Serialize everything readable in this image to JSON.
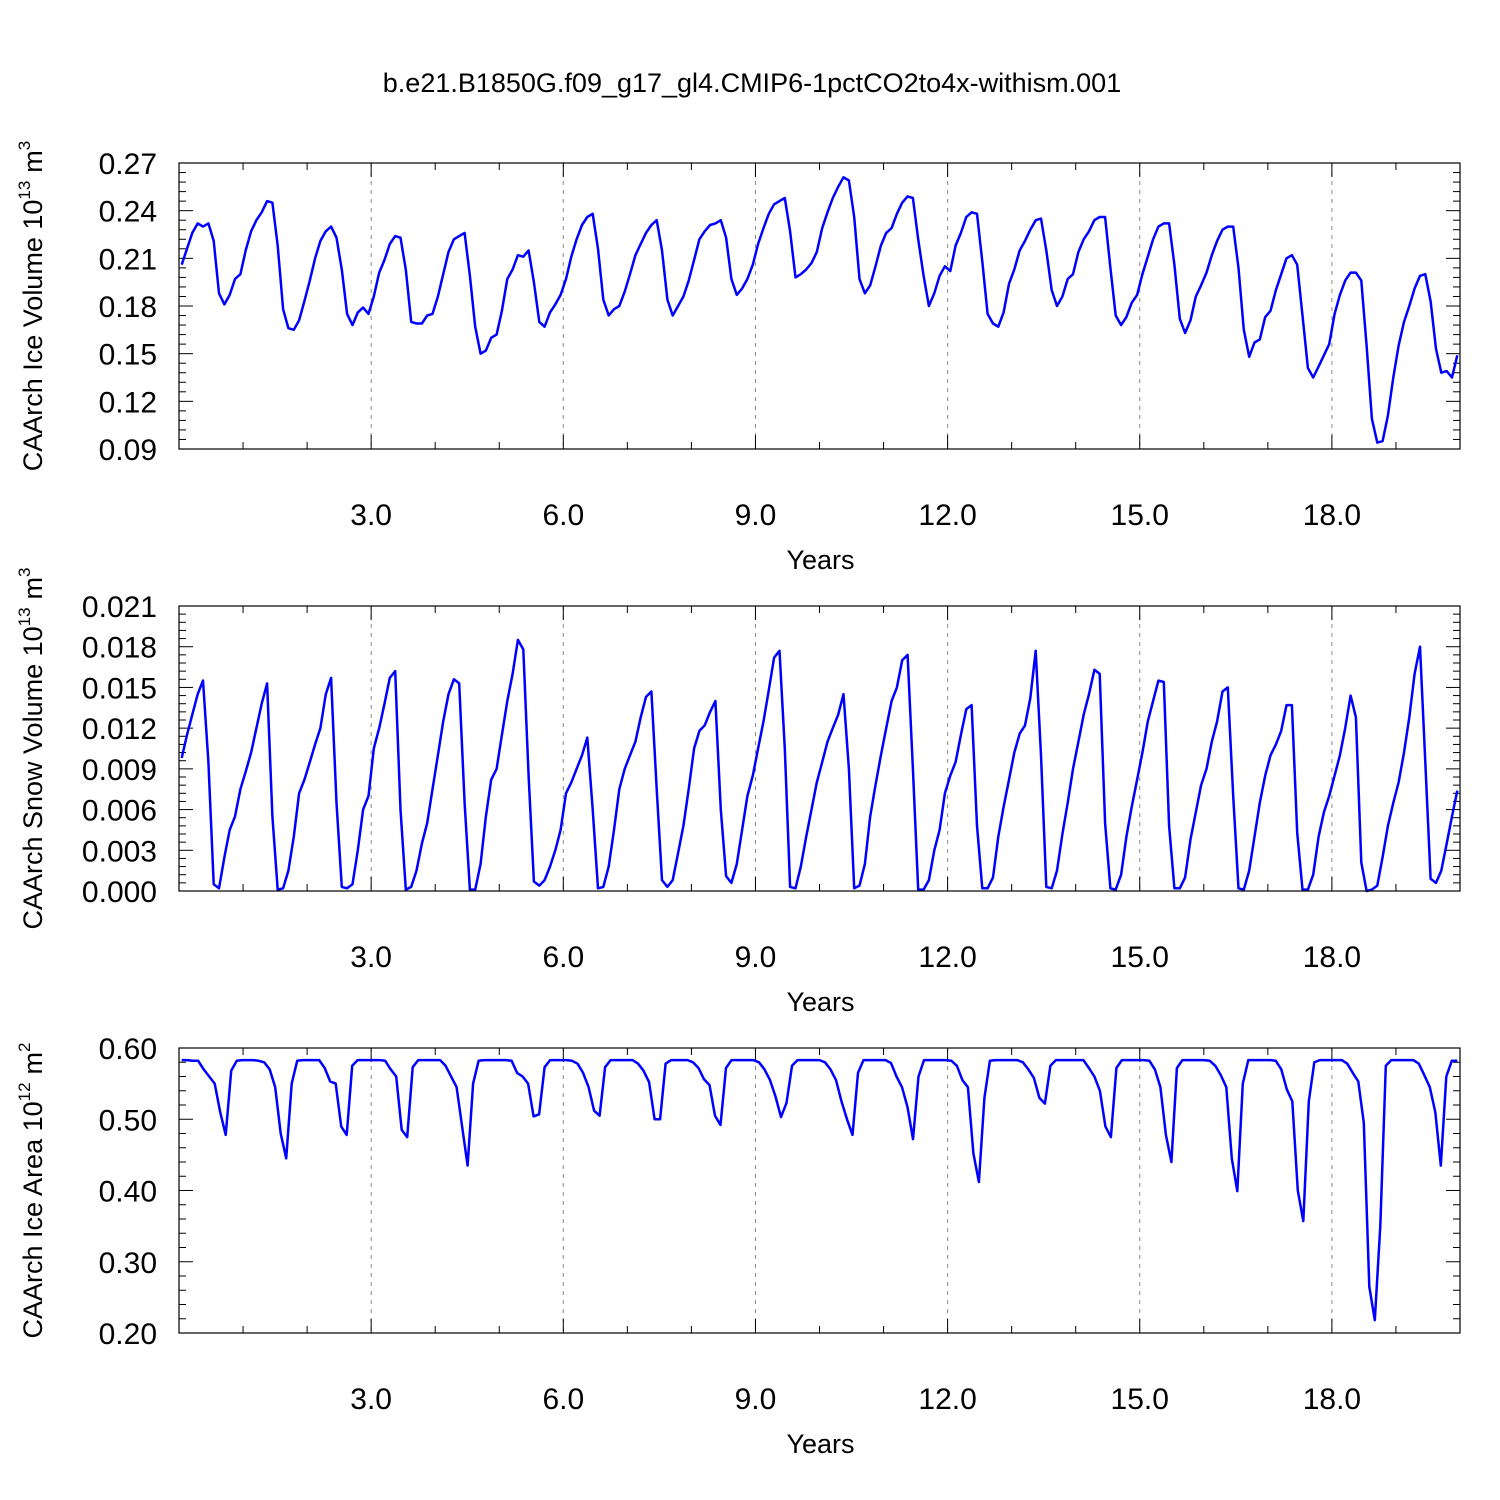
{
  "figure": {
    "title": "b.e21.B1850G.f09_g17_gl4.CMIP6-1pctCO2to4x-withism.001",
    "line_color": "#0000ff",
    "grid_color": "#888888"
  },
  "chart_data": [
    {
      "type": "line",
      "title": "",
      "xlabel": "Years",
      "ylabel": "CAArch Ice Volume 10",
      "ylabel_exponent": "13",
      "ylabel_unit": "m",
      "ylabel_unit_exponent": "3",
      "xlim": [
        0.0,
        20.0
      ],
      "ylim": [
        0.09,
        0.27
      ],
      "xticks": [
        3.0,
        6.0,
        9.0,
        12.0,
        15.0,
        18.0
      ],
      "xtick_labels": [
        "3.0",
        "6.0",
        "9.0",
        "12.0",
        "15.0",
        "18.0"
      ],
      "yticks": [
        0.09,
        0.12,
        0.15,
        0.18,
        0.21,
        0.24,
        0.27
      ],
      "ytick_labels": [
        "0.09",
        "0.12",
        "0.15",
        "0.18",
        "0.21",
        "0.24",
        "0.27"
      ],
      "grid": "vertical dashed",
      "series": [
        {
          "values": [
            0.206,
            0.216,
            0.226,
            0.232,
            0.23,
            0.232,
            0.221,
            0.188,
            0.181,
            0.187,
            0.197,
            0.2,
            0.215,
            0.227,
            0.234,
            0.239,
            0.246,
            0.245,
            0.218,
            0.178,
            0.166,
            0.165,
            0.171,
            0.183,
            0.196,
            0.21,
            0.221,
            0.227,
            0.23,
            0.223,
            0.203,
            0.175,
            0.168,
            0.176,
            0.179,
            0.175,
            0.186,
            0.201,
            0.209,
            0.219,
            0.224,
            0.223,
            0.203,
            0.17,
            0.169,
            0.169,
            0.174,
            0.175,
            0.186,
            0.2,
            0.214,
            0.222,
            0.224,
            0.226,
            0.199,
            0.167,
            0.15,
            0.152,
            0.16,
            0.162,
            0.177,
            0.197,
            0.203,
            0.212,
            0.211,
            0.215,
            0.195,
            0.17,
            0.167,
            0.176,
            0.181,
            0.187,
            0.197,
            0.211,
            0.222,
            0.231,
            0.236,
            0.238,
            0.216,
            0.184,
            0.174,
            0.178,
            0.18,
            0.189,
            0.2,
            0.212,
            0.219,
            0.226,
            0.231,
            0.234,
            0.215,
            0.184,
            0.174,
            0.18,
            0.186,
            0.196,
            0.209,
            0.222,
            0.227,
            0.231,
            0.232,
            0.234,
            0.223,
            0.197,
            0.187,
            0.191,
            0.197,
            0.206,
            0.219,
            0.229,
            0.238,
            0.244,
            0.246,
            0.248,
            0.227,
            0.198,
            0.2,
            0.203,
            0.207,
            0.214,
            0.229,
            0.239,
            0.248,
            0.255,
            0.261,
            0.259,
            0.236,
            0.197,
            0.188,
            0.193,
            0.205,
            0.218,
            0.226,
            0.229,
            0.238,
            0.245,
            0.249,
            0.248,
            0.222,
            0.199,
            0.18,
            0.188,
            0.199,
            0.205,
            0.202,
            0.218,
            0.226,
            0.236,
            0.239,
            0.238,
            0.208,
            0.175,
            0.169,
            0.167,
            0.176,
            0.194,
            0.203,
            0.215,
            0.221,
            0.228,
            0.234,
            0.235,
            0.215,
            0.19,
            0.18,
            0.186,
            0.197,
            0.2,
            0.214,
            0.222,
            0.227,
            0.234,
            0.236,
            0.236,
            0.204,
            0.174,
            0.168,
            0.173,
            0.182,
            0.187,
            0.2,
            0.211,
            0.222,
            0.23,
            0.232,
            0.232,
            0.206,
            0.172,
            0.163,
            0.171,
            0.186,
            0.193,
            0.201,
            0.212,
            0.221,
            0.228,
            0.23,
            0.23,
            0.204,
            0.165,
            0.148,
            0.157,
            0.159,
            0.173,
            0.177,
            0.19,
            0.2,
            0.21,
            0.212,
            0.206,
            0.174,
            0.141,
            0.135,
            0.142,
            0.149,
            0.156,
            0.175,
            0.187,
            0.196,
            0.201,
            0.201,
            0.196,
            0.155,
            0.109,
            0.094,
            0.095,
            0.111,
            0.135,
            0.155,
            0.17,
            0.18,
            0.191,
            0.199,
            0.2,
            0.183,
            0.153,
            0.138,
            0.139,
            0.135,
            0.149
          ]
        }
      ]
    },
    {
      "type": "line",
      "title": "",
      "xlabel": "Years",
      "ylabel": "CAArch Snow Volume 10",
      "ylabel_exponent": "13",
      "ylabel_unit": "m",
      "ylabel_unit_exponent": "3",
      "xlim": [
        0.0,
        20.0
      ],
      "ylim": [
        0.0,
        0.021
      ],
      "xticks": [
        3.0,
        6.0,
        9.0,
        12.0,
        15.0,
        18.0
      ],
      "xtick_labels": [
        "3.0",
        "6.0",
        "9.0",
        "12.0",
        "15.0",
        "18.0"
      ],
      "yticks": [
        0.0,
        0.003,
        0.006,
        0.009,
        0.012,
        0.015,
        0.018,
        0.021
      ],
      "ytick_labels": [
        "0.000",
        "0.003",
        "0.006",
        "0.009",
        "0.012",
        "0.015",
        "0.018",
        "0.021"
      ],
      "grid": "vertical dashed",
      "series": [
        {
          "values": [
            0.0098,
            0.0115,
            0.013,
            0.0145,
            0.0155,
            0.0095,
            0.0005,
            0.0002,
            0.0025,
            0.0045,
            0.0055,
            0.0075,
            0.0088,
            0.0102,
            0.012,
            0.0138,
            0.0153,
            0.0055,
            0.0001,
            0.0002,
            0.0015,
            0.004,
            0.0072,
            0.0082,
            0.0095,
            0.0108,
            0.012,
            0.0145,
            0.0157,
            0.0065,
            0.0003,
            0.0002,
            0.0005,
            0.003,
            0.006,
            0.007,
            0.0105,
            0.012,
            0.0138,
            0.0157,
            0.0162,
            0.006,
            0.0001,
            0.0003,
            0.0015,
            0.0035,
            0.005,
            0.0075,
            0.01,
            0.0125,
            0.0145,
            0.0156,
            0.0153,
            0.0065,
            0.0001,
            0.0001,
            0.002,
            0.0055,
            0.0082,
            0.009,
            0.0115,
            0.014,
            0.016,
            0.0185,
            0.0178,
            0.0085,
            0.0007,
            0.0004,
            0.0008,
            0.0018,
            0.003,
            0.0045,
            0.0072,
            0.008,
            0.009,
            0.01,
            0.0113,
            0.006,
            0.0002,
            0.0003,
            0.0018,
            0.0045,
            0.0075,
            0.009,
            0.01,
            0.011,
            0.0128,
            0.0143,
            0.0147,
            0.0075,
            0.0008,
            0.0003,
            0.0008,
            0.0028,
            0.0048,
            0.0075,
            0.0105,
            0.0118,
            0.0122,
            0.0132,
            0.014,
            0.006,
            0.0011,
            0.0006,
            0.002,
            0.0045,
            0.007,
            0.0085,
            0.0105,
            0.0125,
            0.0148,
            0.0172,
            0.0177,
            0.0105,
            0.0003,
            0.0002,
            0.0018,
            0.004,
            0.006,
            0.008,
            0.0095,
            0.011,
            0.012,
            0.013,
            0.0145,
            0.009,
            0.0002,
            0.0004,
            0.002,
            0.0055,
            0.0078,
            0.01,
            0.012,
            0.014,
            0.015,
            0.017,
            0.0174,
            0.009,
            0.0001,
            0.0001,
            0.0008,
            0.003,
            0.0045,
            0.0072,
            0.0085,
            0.0095,
            0.0115,
            0.0134,
            0.0137,
            0.0048,
            0.0002,
            0.0002,
            0.001,
            0.004,
            0.0062,
            0.0082,
            0.0102,
            0.0116,
            0.0122,
            0.0142,
            0.0177,
            0.01,
            0.0003,
            0.0002,
            0.0015,
            0.0042,
            0.0065,
            0.009,
            0.011,
            0.013,
            0.0145,
            0.0163,
            0.016,
            0.005,
            0.0002,
            0.0001,
            0.0012,
            0.004,
            0.0062,
            0.0082,
            0.0102,
            0.0125,
            0.014,
            0.0155,
            0.0154,
            0.0048,
            0.0002,
            0.0002,
            0.001,
            0.0038,
            0.0058,
            0.0078,
            0.009,
            0.011,
            0.0125,
            0.0147,
            0.015,
            0.007,
            0.0002,
            0.0001,
            0.0015,
            0.004,
            0.0065,
            0.0085,
            0.01,
            0.0108,
            0.0118,
            0.0137,
            0.0137,
            0.0043,
            0.0001,
            0.0001,
            0.0012,
            0.004,
            0.0058,
            0.007,
            0.0085,
            0.01,
            0.012,
            0.0144,
            0.0128,
            0.0021,
            0.0,
            0.0001,
            0.0004,
            0.0025,
            0.0048,
            0.0065,
            0.008,
            0.0102,
            0.0128,
            0.016,
            0.018,
            0.0095,
            0.0009,
            0.0006,
            0.0015,
            0.0035,
            0.0055,
            0.0074
          ]
        }
      ]
    },
    {
      "type": "line",
      "title": "",
      "xlabel": "Years",
      "ylabel": "CAArch Ice Area 10",
      "ylabel_exponent": "12",
      "ylabel_unit": "m",
      "ylabel_unit_exponent": "2",
      "xlim": [
        0.0,
        20.0
      ],
      "ylim": [
        0.2,
        0.6
      ],
      "xticks": [
        3.0,
        6.0,
        9.0,
        12.0,
        15.0,
        18.0
      ],
      "xtick_labels": [
        "3.0",
        "6.0",
        "9.0",
        "12.0",
        "15.0",
        "18.0"
      ],
      "yticks": [
        0.2,
        0.3,
        0.4,
        0.5,
        0.6
      ],
      "ytick_labels": [
        "0.20",
        "0.30",
        "0.40",
        "0.50",
        "0.60"
      ],
      "grid": "vertical dashed",
      "series": [
        {
          "values": [
            0.583,
            0.583,
            0.582,
            0.582,
            0.57,
            0.56,
            0.55,
            0.51,
            0.478,
            0.568,
            0.582,
            0.583,
            0.583,
            0.583,
            0.582,
            0.58,
            0.57,
            0.545,
            0.48,
            0.445,
            0.55,
            0.582,
            0.583,
            0.583,
            0.583,
            0.583,
            0.572,
            0.553,
            0.55,
            0.49,
            0.478,
            0.575,
            0.583,
            0.583,
            0.583,
            0.583,
            0.583,
            0.582,
            0.57,
            0.56,
            0.485,
            0.475,
            0.573,
            0.583,
            0.583,
            0.583,
            0.583,
            0.583,
            0.575,
            0.56,
            0.545,
            0.49,
            0.435,
            0.55,
            0.582,
            0.583,
            0.583,
            0.583,
            0.583,
            0.583,
            0.582,
            0.565,
            0.56,
            0.55,
            0.504,
            0.507,
            0.573,
            0.583,
            0.583,
            0.583,
            0.583,
            0.582,
            0.578,
            0.565,
            0.545,
            0.512,
            0.505,
            0.573,
            0.583,
            0.583,
            0.583,
            0.583,
            0.583,
            0.578,
            0.568,
            0.552,
            0.5,
            0.5,
            0.578,
            0.583,
            0.583,
            0.583,
            0.583,
            0.58,
            0.572,
            0.556,
            0.548,
            0.505,
            0.492,
            0.572,
            0.583,
            0.583,
            0.583,
            0.583,
            0.583,
            0.58,
            0.57,
            0.555,
            0.532,
            0.503,
            0.523,
            0.575,
            0.583,
            0.583,
            0.583,
            0.583,
            0.583,
            0.58,
            0.57,
            0.555,
            0.525,
            0.5,
            0.478,
            0.565,
            0.583,
            0.583,
            0.583,
            0.583,
            0.583,
            0.579,
            0.56,
            0.545,
            0.517,
            0.472,
            0.56,
            0.583,
            0.583,
            0.583,
            0.583,
            0.583,
            0.582,
            0.575,
            0.555,
            0.545,
            0.452,
            0.412,
            0.53,
            0.582,
            0.583,
            0.583,
            0.583,
            0.583,
            0.583,
            0.58,
            0.57,
            0.558,
            0.53,
            0.522,
            0.575,
            0.583,
            0.583,
            0.583,
            0.583,
            0.583,
            0.583,
            0.572,
            0.56,
            0.54,
            0.49,
            0.475,
            0.572,
            0.583,
            0.583,
            0.583,
            0.583,
            0.583,
            0.582,
            0.57,
            0.545,
            0.478,
            0.44,
            0.572,
            0.583,
            0.583,
            0.583,
            0.583,
            0.583,
            0.582,
            0.575,
            0.562,
            0.545,
            0.445,
            0.399,
            0.55,
            0.583,
            0.583,
            0.583,
            0.583,
            0.583,
            0.582,
            0.57,
            0.542,
            0.525,
            0.4,
            0.357,
            0.525,
            0.58,
            0.583,
            0.583,
            0.583,
            0.583,
            0.583,
            0.578,
            0.565,
            0.553,
            0.495,
            0.265,
            0.218,
            0.35,
            0.575,
            0.583,
            0.583,
            0.583,
            0.583,
            0.583,
            0.578,
            0.562,
            0.545,
            0.51,
            0.435,
            0.56,
            0.582,
            0.582
          ]
        }
      ]
    }
  ]
}
